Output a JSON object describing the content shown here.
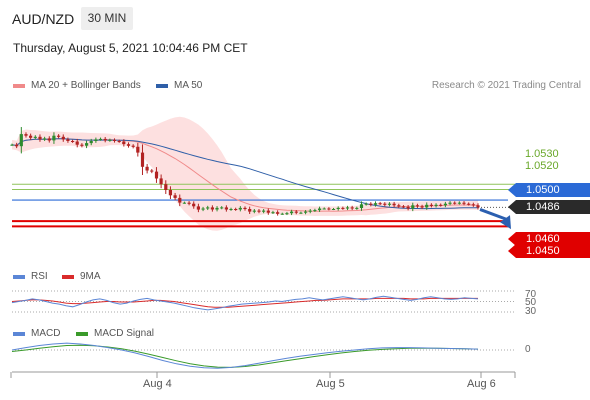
{
  "header": {
    "symbol": "AUD/NZD",
    "timeframe": "30 MIN",
    "timestamp": "Thursday, August 5, 2021 10:04:46 PM CET"
  },
  "legend": {
    "ma20_label": "MA 20 + Bollinger Bands",
    "ma50_label": "MA 50",
    "credit": "Research © 2021 Trading Central"
  },
  "colors": {
    "ma20": "#f08a8a",
    "ma50": "#2f5fa8",
    "band_fill": "#fde0e0",
    "resistance": "#8fc45a",
    "pivot": "#2b6ad6",
    "support": "#e00000",
    "candle_up": "#2e8b2e",
    "candle_down": "#b22222",
    "arrow": "#2b5fb0",
    "rsi": "#5b86d6",
    "rsi_ma": "#d92b2b",
    "macd": "#5b86d6",
    "macd_signal": "#3a9a2a"
  },
  "levels": {
    "r2": "1.0530",
    "r1": "1.0520",
    "pivot": "1.0500",
    "last": "1.0486",
    "s1": "1.0460",
    "s2": "1.0450"
  },
  "chart_data": {
    "type": "candlestick",
    "x_ticks": [
      "Aug 4",
      "Aug 5",
      "Aug 6"
    ],
    "ylim": [
      1.0428,
      1.0667
    ],
    "levels": {
      "resistance": [
        1.053,
        1.052
      ],
      "pivot": 1.05,
      "last": 1.0486,
      "support": [
        1.046,
        1.045
      ]
    },
    "close": [
      1.0605,
      1.0602,
      1.0625,
      1.0622,
      1.0618,
      1.062,
      1.0615,
      1.0617,
      1.0613,
      1.0622,
      1.062,
      1.0615,
      1.0612,
      1.0611,
      1.0605,
      1.0603,
      1.0608,
      1.0612,
      1.0615,
      1.0616,
      1.0613,
      1.0614,
      1.0612,
      1.0611,
      1.0606,
      1.0603,
      1.0601,
      1.059,
      1.0563,
      1.0556,
      1.0554,
      1.0541,
      1.053,
      1.0519,
      1.0509,
      1.0504,
      1.0495,
      1.0495,
      1.0493,
      1.0488,
      1.0482,
      1.0484,
      1.0486,
      1.0482,
      1.0485,
      1.0486,
      1.0482,
      1.0483,
      1.0482,
      1.0485,
      1.0483,
      1.0478,
      1.048,
      1.0478,
      1.048,
      1.0476,
      1.0477,
      1.0474,
      1.0474,
      1.0475,
      1.0478,
      1.0476,
      1.0476,
      1.0478,
      1.048,
      1.0481,
      1.0484,
      1.0484,
      1.0483,
      1.0483,
      1.0485,
      1.0484,
      1.0486,
      1.0484,
      1.0485,
      1.0492,
      1.0493,
      1.0491,
      1.0494,
      1.0493,
      1.0491,
      1.0493,
      1.049,
      1.0488,
      1.0487,
      1.0484,
      1.049,
      1.0488,
      1.0486,
      1.0491,
      1.0489,
      1.0491,
      1.049,
      1.0493,
      1.0495,
      1.0494,
      1.0495,
      1.0493,
      1.0492,
      1.049,
      1.0486
    ],
    "rsi": {
      "name": "RSI",
      "ma_name": "9MA",
      "guides": [
        "70",
        "50",
        "30"
      ],
      "values": [
        48,
        50,
        52,
        55,
        53,
        50,
        47,
        45,
        42,
        40,
        44,
        49,
        53,
        55,
        52,
        48,
        45,
        47,
        51,
        54,
        56,
        53,
        51,
        49,
        47,
        44,
        41,
        38,
        36,
        34,
        36,
        38,
        41,
        43,
        45,
        46,
        47,
        48,
        49,
        51,
        50,
        52,
        54,
        55,
        57,
        55,
        53,
        55,
        57,
        59,
        57,
        55,
        53,
        55,
        58,
        60,
        58,
        56,
        54,
        52,
        54,
        57,
        59,
        57,
        55,
        54,
        55,
        57,
        56,
        55
      ],
      "ma": [
        50,
        51,
        52,
        53,
        53,
        52,
        51,
        49,
        47,
        46,
        46,
        47,
        48,
        49,
        50,
        50,
        49,
        49,
        49,
        50,
        51,
        52,
        52,
        51,
        50,
        48,
        46,
        44,
        42,
        40,
        39,
        39,
        39,
        40,
        41,
        42,
        43,
        44,
        45,
        46,
        47,
        48,
        49,
        50,
        51,
        52,
        52,
        53,
        54,
        55,
        55,
        55,
        55,
        55,
        56,
        56,
        56,
        56,
        56,
        55,
        55,
        55,
        56,
        56,
        56,
        56,
        56,
        56,
        56,
        56
      ]
    },
    "macd": {
      "name": "MACD",
      "signal_name": "MACD Signal",
      "zero_label": "0",
      "values": [
        0.0,
        0.8,
        1.5,
        2.0,
        2.3,
        2.0,
        1.5,
        0.8,
        0.0,
        -1.0,
        -2.2,
        -3.5,
        -4.6,
        -5.4,
        -5.9,
        -6.1,
        -5.8,
        -5.2,
        -4.4,
        -3.6,
        -2.8,
        -2.1,
        -1.5,
        -0.9,
        -0.4,
        0.0,
        0.4,
        0.7,
        0.8,
        0.8,
        0.7,
        0.6,
        0.5,
        0.4,
        0.3
      ],
      "signal": [
        -0.5,
        0.0,
        0.6,
        1.1,
        1.5,
        1.6,
        1.4,
        1.0,
        0.4,
        -0.4,
        -1.4,
        -2.5,
        -3.6,
        -4.6,
        -5.3,
        -5.7,
        -5.8,
        -5.5,
        -5.0,
        -4.3,
        -3.6,
        -2.9,
        -2.2,
        -1.6,
        -1.0,
        -0.5,
        -0.1,
        0.2,
        0.4,
        0.6,
        0.6,
        0.6,
        0.5,
        0.4,
        0.3
      ]
    }
  }
}
